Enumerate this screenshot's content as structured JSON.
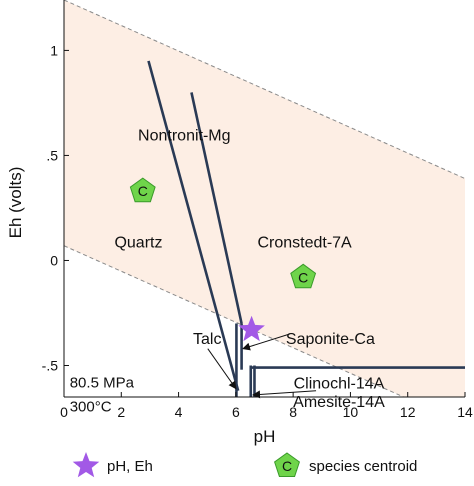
{
  "chart_data": {
    "type": "phase-diagram",
    "xlabel": "pH",
    "ylabel": "Eh (volts)",
    "xlim": [
      0,
      14
    ],
    "ylim": [
      -0.65,
      1.24
    ],
    "x_ticks": [
      0,
      2,
      4,
      6,
      8,
      10,
      12,
      14
    ],
    "x_tick_labels": [
      "0",
      "2",
      "4",
      "6",
      "8",
      "10",
      "12",
      "14"
    ],
    "y_ticks": [
      -0.5,
      0,
      0.5,
      1
    ],
    "y_tick_labels": [
      "-.5",
      "0",
      ".5",
      "1"
    ],
    "grid": false,
    "colors": {
      "stability_field": "#fdeee4",
      "boundary": "#2a3a55",
      "point": "#a259e6",
      "centroid": "#6fd44a",
      "water_limit": "#8a8a8a"
    },
    "water_limits": [
      {
        "name": "upper",
        "x": [
          0,
          14
        ],
        "y": [
          1.24,
          0.39
        ]
      },
      {
        "name": "lower",
        "x": [
          0,
          14
        ],
        "y": [
          0.07,
          -0.78
        ]
      }
    ],
    "boundaries": [
      {
        "x": [
          2.95,
          6.08
        ],
        "y": [
          0.95,
          -0.62
        ]
      },
      {
        "x": [
          4.45,
          6.2
        ],
        "y": [
          0.8,
          -0.3
        ]
      },
      {
        "x": [
          6.02,
          6.02
        ],
        "y": [
          -0.3,
          -0.66
        ]
      },
      {
        "x": [
          6.2,
          6.2
        ],
        "y": [
          -0.3,
          -0.52
        ]
      },
      {
        "x": [
          6.52,
          6.52
        ],
        "y": [
          -0.5,
          -0.71
        ]
      },
      {
        "x": [
          6.65,
          6.65
        ],
        "y": [
          -0.5,
          -0.71
        ]
      },
      {
        "x": [
          6.52,
          14
        ],
        "y": [
          -0.51,
          -0.51
        ]
      }
    ],
    "fields": [
      {
        "name": "Nontronit-Mg",
        "x": 4.2,
        "y": 0.6
      },
      {
        "name": "Quartz",
        "x": 2.6,
        "y": 0.09
      },
      {
        "name": "Cronstedt-7A",
        "x": 8.4,
        "y": 0.09
      },
      {
        "name": "Talc",
        "x": 5.0,
        "y": -0.37
      },
      {
        "name": "Saponite-Ca",
        "x": 9.3,
        "y": -0.37
      },
      {
        "name": "Clinochl-14A",
        "x": 9.6,
        "y": -0.58
      },
      {
        "name": "Amesite-14A",
        "x": 9.6,
        "y": -0.67
      }
    ],
    "pointers": [
      {
        "from": [
          5.02,
          -0.42
        ],
        "to": [
          6.0,
          -0.61
        ]
      },
      {
        "from": [
          7.88,
          -0.35
        ],
        "to": [
          6.25,
          -0.42
        ]
      },
      {
        "from": [
          8.8,
          -0.62
        ],
        "to": [
          6.6,
          -0.64
        ]
      }
    ],
    "point": {
      "label": "pH, Eh",
      "x": 6.55,
      "y": -0.33
    },
    "centroids": [
      {
        "x": 2.75,
        "y": 0.33
      },
      {
        "x": 8.35,
        "y": -0.08
      }
    ],
    "centroid_marker_text": "C",
    "conditions": [
      "80.5 MPa",
      "300°C"
    ],
    "legend": {
      "placement": "bottom",
      "items": [
        {
          "marker": "star",
          "label": "pH, Eh"
        },
        {
          "marker": "pentagon",
          "label": "species centroid"
        }
      ]
    }
  }
}
